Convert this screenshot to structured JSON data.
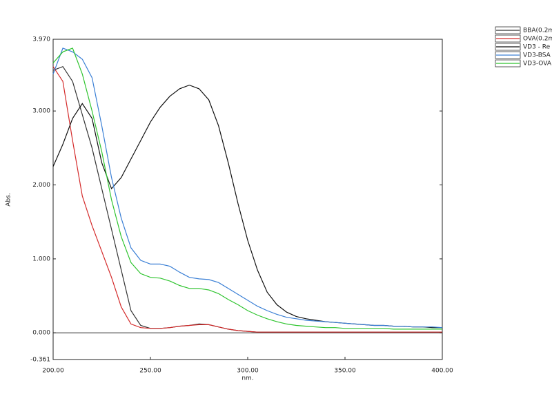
{
  "chart_data": {
    "type": "line",
    "y_label": "Abs.",
    "x_label": "nm.",
    "x": [
      200,
      205,
      210,
      215,
      220,
      225,
      230,
      235,
      240,
      245,
      250,
      255,
      260,
      265,
      270,
      275,
      280,
      285,
      290,
      295,
      300,
      305,
      310,
      315,
      320,
      325,
      330,
      335,
      340,
      345,
      350,
      355,
      360,
      365,
      370,
      375,
      380,
      385,
      390,
      395,
      400
    ],
    "series": [
      {
        "name": "BBA(0.2m",
        "color": "#333333",
        "values": [
          3.55,
          3.6,
          3.4,
          2.95,
          2.5,
          1.95,
          1.4,
          0.85,
          0.3,
          0.1,
          0.06,
          0.06,
          0.07,
          0.09,
          0.1,
          0.12,
          0.11,
          0.08,
          0.05,
          0.03,
          0.02,
          0.01,
          0.01,
          0.01,
          0.01,
          0.01,
          0.01,
          0.01,
          0.01,
          0.01,
          0.01,
          0.01,
          0.01,
          0.01,
          0.01,
          0.01,
          0.01,
          0.01,
          0.01,
          0.01,
          0.01
        ]
      },
      {
        "name": "OVA(0.2m",
        "color": "#d42a2a",
        "values": [
          3.6,
          3.4,
          2.6,
          1.85,
          1.45,
          1.1,
          0.75,
          0.35,
          0.12,
          0.07,
          0.06,
          0.06,
          0.07,
          0.09,
          0.1,
          0.11,
          0.11,
          0.08,
          0.05,
          0.03,
          0.02,
          0.01,
          0.01,
          0.01,
          0.01,
          0.01,
          0.01,
          0.01,
          0.01,
          0.01,
          0.01,
          0.01,
          0.01,
          0.01,
          0.01,
          0.01,
          0.01,
          0.01,
          0.01,
          0.01,
          0.01
        ]
      },
      {
        "name": "VD3 - Re",
        "color": "#111111",
        "values": [
          2.25,
          2.55,
          2.9,
          3.1,
          2.9,
          2.3,
          1.95,
          2.1,
          2.35,
          2.6,
          2.85,
          3.05,
          3.2,
          3.3,
          3.35,
          3.3,
          3.15,
          2.8,
          2.3,
          1.75,
          1.25,
          0.85,
          0.55,
          0.38,
          0.28,
          0.22,
          0.19,
          0.17,
          0.15,
          0.14,
          0.13,
          0.12,
          0.11,
          0.1,
          0.1,
          0.09,
          0.09,
          0.08,
          0.08,
          0.07,
          0.07
        ]
      },
      {
        "name": "VD3-BSA",
        "color": "#3a7fd5",
        "values": [
          3.5,
          3.85,
          3.8,
          3.7,
          3.45,
          2.8,
          2.1,
          1.55,
          1.15,
          0.98,
          0.93,
          0.93,
          0.9,
          0.82,
          0.75,
          0.73,
          0.72,
          0.68,
          0.6,
          0.52,
          0.44,
          0.36,
          0.3,
          0.25,
          0.21,
          0.19,
          0.17,
          0.16,
          0.15,
          0.14,
          0.13,
          0.12,
          0.11,
          0.1,
          0.1,
          0.09,
          0.09,
          0.08,
          0.08,
          0.08,
          0.07
        ]
      },
      {
        "name": "VD3-OVA",
        "color": "#2ec42e",
        "values": [
          3.65,
          3.8,
          3.85,
          3.5,
          3.0,
          2.45,
          1.8,
          1.3,
          0.95,
          0.8,
          0.75,
          0.74,
          0.7,
          0.64,
          0.6,
          0.6,
          0.58,
          0.53,
          0.45,
          0.38,
          0.3,
          0.24,
          0.19,
          0.15,
          0.12,
          0.1,
          0.09,
          0.08,
          0.07,
          0.07,
          0.06,
          0.06,
          0.06,
          0.06,
          0.06,
          0.05,
          0.05,
          0.05,
          0.05,
          0.05,
          0.05
        ]
      }
    ],
    "xlim": [
      200,
      400
    ],
    "xticks": [
      {
        "value": 200,
        "label": "200.00"
      },
      {
        "value": 250,
        "label": "250.00"
      },
      {
        "value": 300,
        "label": "300.00"
      },
      {
        "value": 350,
        "label": "350.00"
      },
      {
        "value": 400,
        "label": "400.00"
      }
    ],
    "ylim": [
      -0.361,
      3.97
    ],
    "yticks": [
      {
        "value": 3.97,
        "label": "3.970"
      },
      {
        "value": 3,
        "label": "3.000"
      },
      {
        "value": 2,
        "label": "2.000"
      },
      {
        "value": 1,
        "label": "1.000"
      },
      {
        "value": 0,
        "label": "0.000"
      },
      {
        "value": -0.361,
        "label": "-0.361"
      }
    ],
    "legend": "top-right"
  }
}
